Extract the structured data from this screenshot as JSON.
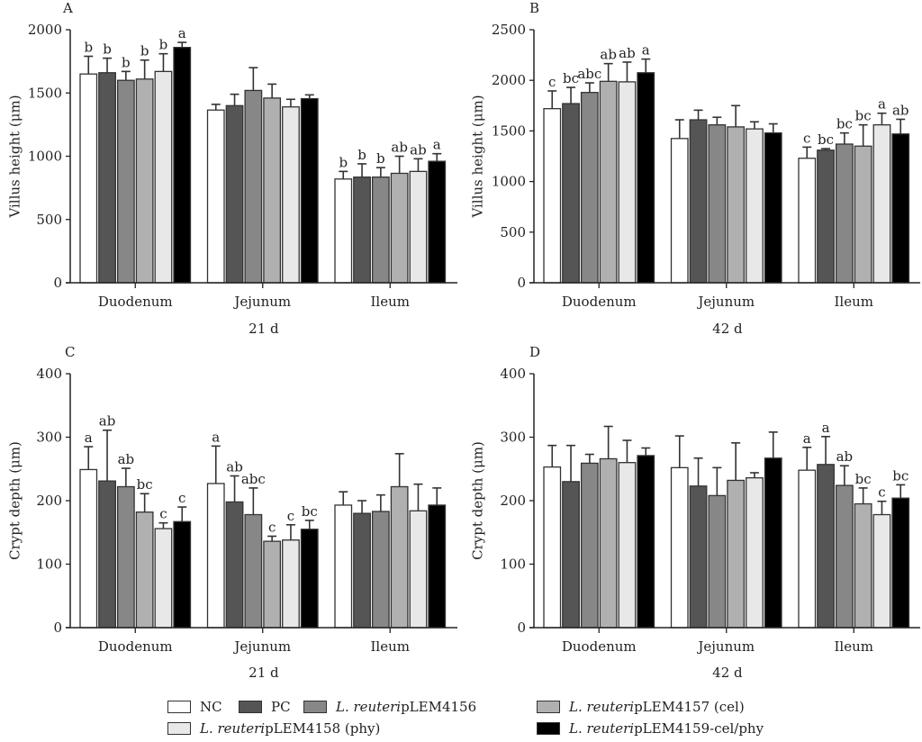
{
  "chart_data": [
    {
      "type": "bar",
      "panel_label": "A",
      "title": "",
      "xlabel": "21 d",
      "ylabel": "Villus height (μm)",
      "ylim": [
        0,
        2000
      ],
      "yticks": [
        0,
        500,
        1000,
        1500,
        2000
      ],
      "categories": [
        "Duodenum",
        "Jejunum",
        "Ileum"
      ],
      "series": [
        {
          "name": "NC",
          "values": [
            1650,
            1365,
            820
          ],
          "error_top": [
            1790,
            1410,
            880
          ],
          "letters": [
            "b",
            "",
            "b"
          ]
        },
        {
          "name": "PC",
          "values": [
            1660,
            1400,
            835
          ],
          "error_top": [
            1775,
            1490,
            940
          ],
          "letters": [
            "b",
            "",
            "b"
          ]
        },
        {
          "name": "L. reuteri pLEM4156",
          "values": [
            1600,
            1520,
            835
          ],
          "error_top": [
            1670,
            1700,
            910
          ],
          "letters": [
            "b",
            "",
            "b"
          ]
        },
        {
          "name": "L. reuteri pLEM4157 (cel)",
          "values": [
            1610,
            1460,
            865
          ],
          "error_top": [
            1760,
            1570,
            1000
          ],
          "letters": [
            "b",
            "",
            "ab"
          ]
        },
        {
          "name": "L. reuteri pLEM4158 (phy)",
          "values": [
            1670,
            1390,
            880
          ],
          "error_top": [
            1810,
            1450,
            980
          ],
          "letters": [
            "b",
            "",
            "ab"
          ]
        },
        {
          "name": "L. reuteri pLEM4159-cel/phy",
          "values": [
            1860,
            1455,
            960
          ],
          "error_top": [
            1900,
            1485,
            1020
          ],
          "letters": [
            "a",
            "",
            "a"
          ]
        }
      ]
    },
    {
      "type": "bar",
      "panel_label": "B",
      "title": "",
      "xlabel": "42 d",
      "ylabel": "Villus height (μm)",
      "ylim": [
        0,
        2500
      ],
      "yticks": [
        0,
        500,
        1000,
        1500,
        2000,
        2500
      ],
      "categories": [
        "Duodenum",
        "Jejunum",
        "Ileum"
      ],
      "series": [
        {
          "name": "NC",
          "values": [
            1720,
            1425,
            1230
          ],
          "error_top": [
            1895,
            1610,
            1340
          ],
          "letters": [
            "c",
            "",
            "c"
          ]
        },
        {
          "name": "PC",
          "values": [
            1770,
            1610,
            1310
          ],
          "error_top": [
            1930,
            1705,
            1325
          ],
          "letters": [
            "bc",
            "",
            "bc"
          ]
        },
        {
          "name": "L. reuteri pLEM4156",
          "values": [
            1880,
            1560,
            1370
          ],
          "error_top": [
            1975,
            1635,
            1480
          ],
          "letters": [
            "abc",
            "",
            "bc"
          ]
        },
        {
          "name": "L. reuteri pLEM4157 (cel)",
          "values": [
            1990,
            1540,
            1350
          ],
          "error_top": [
            2165,
            1750,
            1560
          ],
          "letters": [
            "ab",
            "",
            "bc"
          ]
        },
        {
          "name": "L. reuteri pLEM4158 (phy)",
          "values": [
            1985,
            1520,
            1560
          ],
          "error_top": [
            2180,
            1590,
            1675
          ],
          "letters": [
            "ab",
            "",
            "a"
          ]
        },
        {
          "name": "L. reuteri pLEM4159-cel/phy",
          "values": [
            2075,
            1480,
            1470
          ],
          "error_top": [
            2210,
            1570,
            1615
          ],
          "letters": [
            "a",
            "",
            "ab"
          ]
        }
      ]
    },
    {
      "type": "bar",
      "panel_label": "C",
      "title": "",
      "xlabel": "21 d",
      "ylabel": "Crypt depth (μm)",
      "ylim": [
        0,
        400
      ],
      "yticks": [
        0,
        100,
        200,
        300,
        400
      ],
      "categories": [
        "Duodenum",
        "Jejunum",
        "Ileum"
      ],
      "series": [
        {
          "name": "NC",
          "values": [
            249,
            227,
            193
          ],
          "error_top": [
            285,
            286,
            214
          ],
          "letters": [
            "a",
            "a",
            ""
          ]
        },
        {
          "name": "PC",
          "values": [
            231,
            198,
            180
          ],
          "error_top": [
            311,
            239,
            200
          ],
          "letters": [
            "ab",
            "ab",
            ""
          ]
        },
        {
          "name": "L. reuteri pLEM4156",
          "values": [
            222,
            178,
            183
          ],
          "error_top": [
            251,
            220,
            209
          ],
          "letters": [
            "ab",
            "abc",
            ""
          ]
        },
        {
          "name": "L. reuteri pLEM4157 (cel)",
          "values": [
            182,
            136,
            222
          ],
          "error_top": [
            211,
            144,
            274
          ],
          "letters": [
            "bc",
            "c",
            ""
          ]
        },
        {
          "name": "L. reuteri pLEM4158 (phy)",
          "values": [
            156,
            138,
            184
          ],
          "error_top": [
            165,
            162,
            226
          ],
          "letters": [
            "c",
            "c",
            ""
          ]
        },
        {
          "name": "L. reuteri pLEM4159-cel/phy",
          "values": [
            167,
            155,
            193
          ],
          "error_top": [
            190,
            169,
            220
          ],
          "letters": [
            "c",
            "bc",
            ""
          ]
        }
      ]
    },
    {
      "type": "bar",
      "panel_label": "D",
      "title": "",
      "xlabel": "42 d",
      "ylabel": "Crypt depth (μm)",
      "ylim": [
        0,
        400
      ],
      "yticks": [
        0,
        100,
        200,
        300,
        400
      ],
      "categories": [
        "Duodenum",
        "Jejunum",
        "Ileum"
      ],
      "series": [
        {
          "name": "NC",
          "values": [
            253,
            252,
            248
          ],
          "error_top": [
            287,
            302,
            284
          ],
          "letters": [
            "",
            "",
            "a"
          ]
        },
        {
          "name": "PC",
          "values": [
            230,
            223,
            257
          ],
          "error_top": [
            287,
            267,
            301
          ],
          "letters": [
            "",
            "",
            "a"
          ]
        },
        {
          "name": "L. reuteri pLEM4156",
          "values": [
            259,
            208,
            224
          ],
          "error_top": [
            273,
            252,
            255
          ],
          "letters": [
            "",
            "",
            "ab"
          ]
        },
        {
          "name": "L. reuteri pLEM4157 (cel)",
          "values": [
            266,
            232,
            195
          ],
          "error_top": [
            317,
            291,
            220
          ],
          "letters": [
            "",
            "",
            "bc"
          ]
        },
        {
          "name": "L. reuteri pLEM4158 (phy)",
          "values": [
            260,
            236,
            178
          ],
          "error_top": [
            295,
            244,
            199
          ],
          "letters": [
            "",
            "",
            "c"
          ]
        },
        {
          "name": "L. reuteri pLEM4159-cel/phy",
          "values": [
            271,
            267,
            204
          ],
          "error_top": [
            283,
            308,
            225
          ],
          "letters": [
            "",
            "",
            "bc"
          ]
        }
      ]
    }
  ],
  "series_colors": [
    "#ffffff",
    "#555555",
    "#878787",
    "#b0b0b0",
    "#e8e8e8",
    "#000000"
  ],
  "legend": {
    "placement": "bottom-center",
    "items": [
      {
        "italic": "",
        "plain": "NC"
      },
      {
        "italic": "",
        "plain": "PC"
      },
      {
        "italic": "L. reuteri",
        "plain": " pLEM4156"
      },
      {
        "italic": "L. reuteri",
        "plain": " pLEM4157 (cel)"
      },
      {
        "italic": "L. reuteri",
        "plain": " pLEM4158 (phy)"
      },
      {
        "italic": "L. reuteri",
        "plain": " pLEM4159-cel/phy"
      }
    ]
  }
}
